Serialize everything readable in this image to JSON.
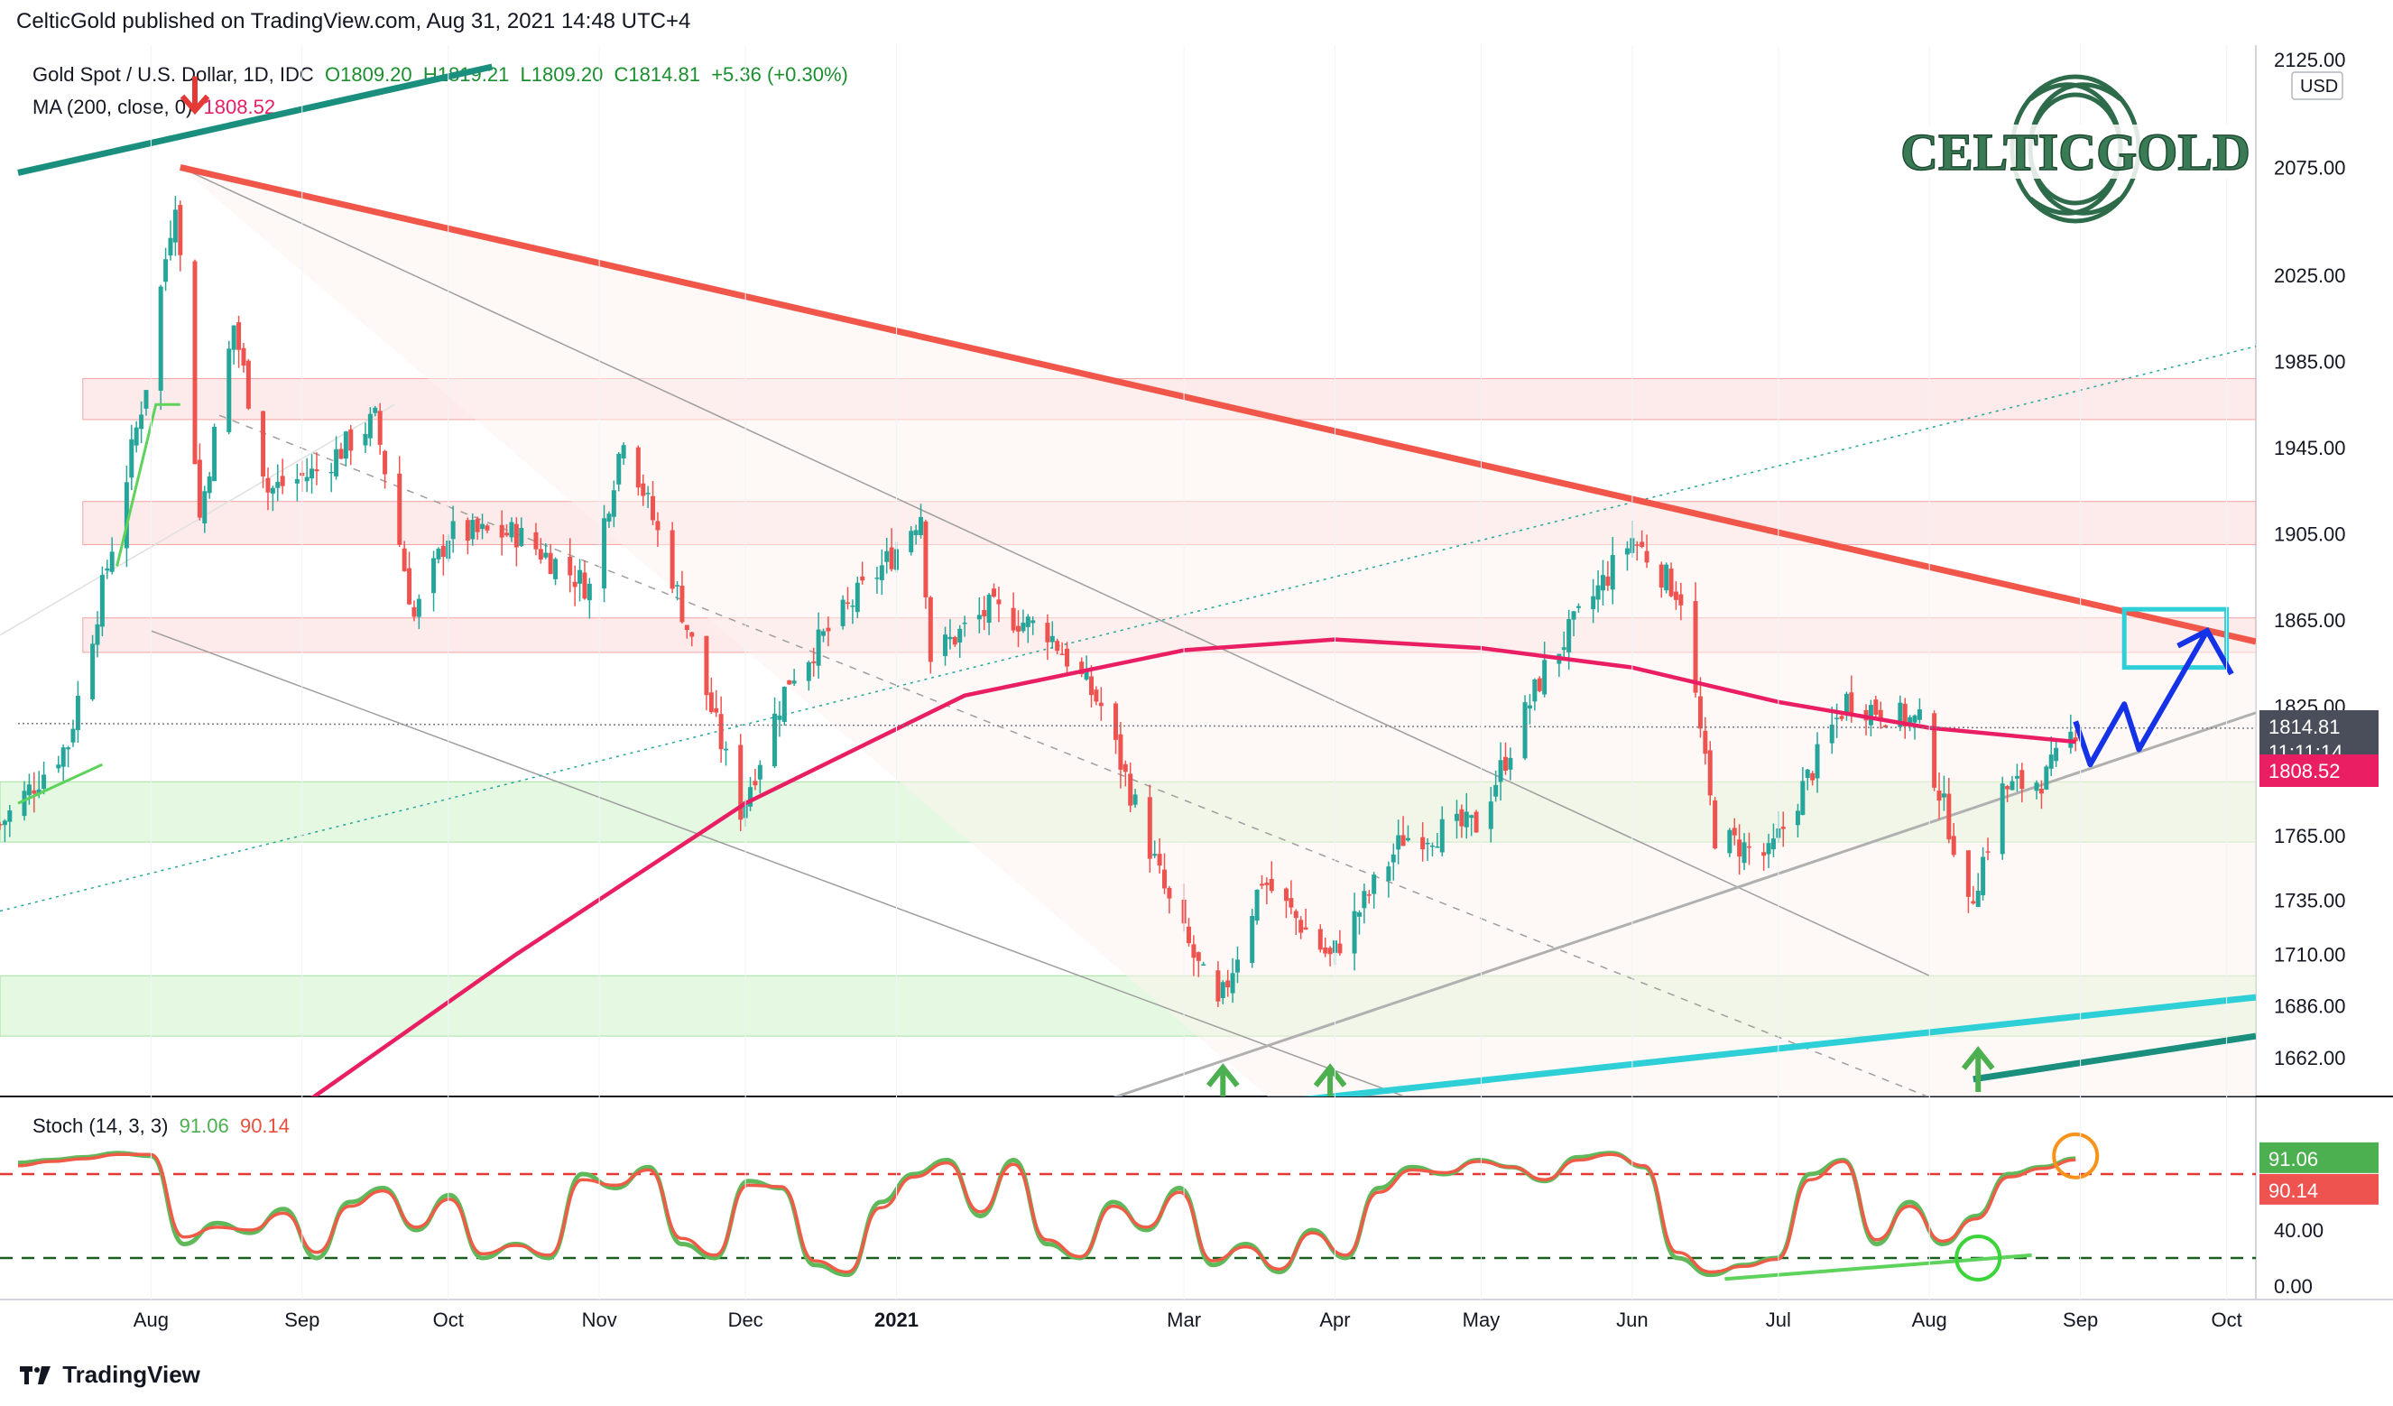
{
  "header": {
    "publisher": "CelticGold published on TradingView.com, Aug 31, 2021 14:48 UTC+4"
  },
  "legend": {
    "symbol": "Gold Spot / U.S. Dollar, 1D, IDC",
    "open": "O1809.20",
    "high": "H1819.21",
    "low": "L1809.20",
    "close": "C1814.81",
    "change": "+5.36 (+0.30%)",
    "ma_label": "MA (200, close, 0)",
    "ma_value": "1808.52",
    "stoch_label": "Stoch (14, 3, 3)",
    "stoch_k": "91.06",
    "stoch_d": "90.14"
  },
  "logo": {
    "text": "CELTICGOLD"
  },
  "footer": {
    "brand": "TradingView"
  },
  "colors": {
    "up": "#26a69a",
    "down": "#ef5350",
    "ma": "#e91e63",
    "resistance": "#f0574a",
    "support_teal": "#2ecfd6",
    "dark_teal": "#1b8f7e",
    "stoch_k": "#5fb85a",
    "stoch_d": "#ef5b47",
    "forecast": "#1432e6",
    "target_box": "#2ecfd6"
  },
  "badges": {
    "price": "1814.81",
    "countdown": "11:11:14",
    "ma": "1808.52",
    "stoch_k": "91.06",
    "stoch_d": "90.14"
  },
  "chart_data": [
    {
      "type": "candlestick",
      "title": "Gold Spot / U.S. Dollar, 1D, IDC",
      "currency": "USD",
      "y_ticks": [
        2125,
        2075,
        2025,
        1985,
        1945,
        1905,
        1865,
        1825,
        1765,
        1735,
        1710,
        1686,
        1662
      ],
      "y_tick_labels": [
        "2125.00",
        "2075.00",
        "2025.00",
        "1985.00",
        "1945.00",
        "1905.00",
        "1865.00",
        "1825.00",
        "1765.00",
        "1735.00",
        "1710.00",
        "1686.00",
        "1662.00"
      ],
      "x_ticks": [
        "Aug",
        "Sep",
        "Oct",
        "Nov",
        "Dec",
        "2021",
        "Mar",
        "Apr",
        "May",
        "Jun",
        "Jul",
        "Aug",
        "Sep",
        "Oct"
      ],
      "x_range": [
        "2020-07-01",
        "2021-10-07"
      ],
      "series_close": [
        [
          "2020-07-01",
          1770
        ],
        [
          "2020-07-15",
          1808
        ],
        [
          "2020-07-24",
          1900
        ],
        [
          "2020-07-31",
          1975
        ],
        [
          "2020-08-06",
          2062
        ],
        [
          "2020-08-11",
          1912
        ],
        [
          "2020-08-18",
          2002
        ],
        [
          "2020-08-25",
          1925
        ],
        [
          "2020-09-04",
          1934
        ],
        [
          "2020-09-16",
          1958
        ],
        [
          "2020-09-24",
          1866
        ],
        [
          "2020-10-01",
          1905
        ],
        [
          "2020-10-15",
          1905
        ],
        [
          "2020-10-30",
          1880
        ],
        [
          "2020-11-06",
          1952
        ],
        [
          "2020-11-16",
          1885
        ],
        [
          "2020-11-30",
          1777
        ],
        [
          "2020-12-10",
          1838
        ],
        [
          "2020-12-31",
          1895
        ],
        [
          "2021-01-06",
          1915
        ],
        [
          "2021-01-08",
          1848
        ],
        [
          "2021-01-20",
          1870
        ],
        [
          "2021-02-01",
          1860
        ],
        [
          "2021-02-12",
          1825
        ],
        [
          "2021-02-26",
          1733
        ],
        [
          "2021-03-08",
          1684
        ],
        [
          "2021-03-17",
          1745
        ],
        [
          "2021-03-31",
          1708
        ],
        [
          "2021-04-15",
          1764
        ],
        [
          "2021-04-30",
          1770
        ],
        [
          "2021-05-14",
          1842
        ],
        [
          "2021-06-01",
          1903
        ],
        [
          "2021-06-11",
          1876
        ],
        [
          "2021-06-18",
          1765
        ],
        [
          "2021-06-29",
          1755
        ],
        [
          "2021-07-15",
          1828
        ],
        [
          "2021-07-30",
          1817
        ],
        [
          "2021-08-06",
          1762
        ],
        [
          "2021-08-09",
          1730
        ],
        [
          "2021-08-16",
          1786
        ],
        [
          "2021-08-25",
          1792
        ],
        [
          "2021-08-31",
          1814.81
        ]
      ],
      "ma200": [
        [
          "2020-07-20",
          1601
        ],
        [
          "2020-09-01",
          1640
        ],
        [
          "2020-10-15",
          1710
        ],
        [
          "2020-12-01",
          1780
        ],
        [
          "2021-01-15",
          1830
        ],
        [
          "2021-03-01",
          1851
        ],
        [
          "2021-04-01",
          1856
        ],
        [
          "2021-05-01",
          1852
        ],
        [
          "2021-06-01",
          1843
        ],
        [
          "2021-07-01",
          1827
        ],
        [
          "2021-08-01",
          1815
        ],
        [
          "2021-08-31",
          1808.52
        ]
      ],
      "resistance_zones": [
        [
          1958,
          1977
        ],
        [
          1900,
          1920
        ],
        [
          1850,
          1866
        ]
      ],
      "support_zones": [
        [
          1762,
          1790
        ],
        [
          1672,
          1700
        ]
      ],
      "trendlines": [
        {
          "name": "downtrend-resistance",
          "from": [
            "2020-08-07",
            2075
          ],
          "to": [
            "2021-10-07",
            1855
          ]
        },
        {
          "name": "rising-support",
          "from": [
            "2021-03-15",
            1640
          ],
          "to": [
            "2021-10-07",
            1690
          ]
        }
      ],
      "target_zone": {
        "from": "2021-09-10",
        "to": "2021-10-01",
        "low": 1843,
        "high": 1870
      },
      "annotations": [
        "Mar",
        "Apr",
        "Aug"
      ]
    },
    {
      "type": "line",
      "title": "Stoch (14, 3, 3)",
      "y_ticks": [
        91.06,
        40,
        0
      ],
      "y_tick_labels": [
        "91.06",
        "40.00",
        "0.00"
      ],
      "upper_band": 80,
      "lower_band": 20,
      "series": [
        {
          "name": "%K",
          "values": [
            88,
            90,
            92,
            95,
            93,
            30,
            45,
            38,
            55,
            20,
            60,
            70,
            40,
            65,
            20,
            30,
            20,
            80,
            70,
            85,
            30,
            20,
            75,
            70,
            15,
            8,
            60,
            80,
            90,
            50,
            90,
            30,
            20,
            60,
            40,
            70,
            15,
            30,
            10,
            40,
            20,
            70,
            85,
            80,
            90,
            85,
            75,
            92,
            95,
            85,
            20,
            8,
            15,
            20,
            80,
            90,
            30,
            60,
            30,
            50,
            80,
            85,
            91.06
          ]
        },
        {
          "name": "%D",
          "values": [
            86,
            89,
            91,
            94,
            94,
            35,
            42,
            40,
            52,
            24,
            57,
            68,
            42,
            62,
            23,
            29,
            22,
            76,
            72,
            83,
            34,
            22,
            72,
            71,
            18,
            10,
            56,
            78,
            88,
            53,
            87,
            33,
            21,
            57,
            42,
            67,
            18,
            28,
            12,
            38,
            22,
            67,
            83,
            81,
            89,
            85,
            76,
            90,
            94,
            86,
            24,
            10,
            14,
            19,
            76,
            89,
            33,
            57,
            32,
            48,
            78,
            84,
            90.14
          ]
        }
      ]
    }
  ]
}
